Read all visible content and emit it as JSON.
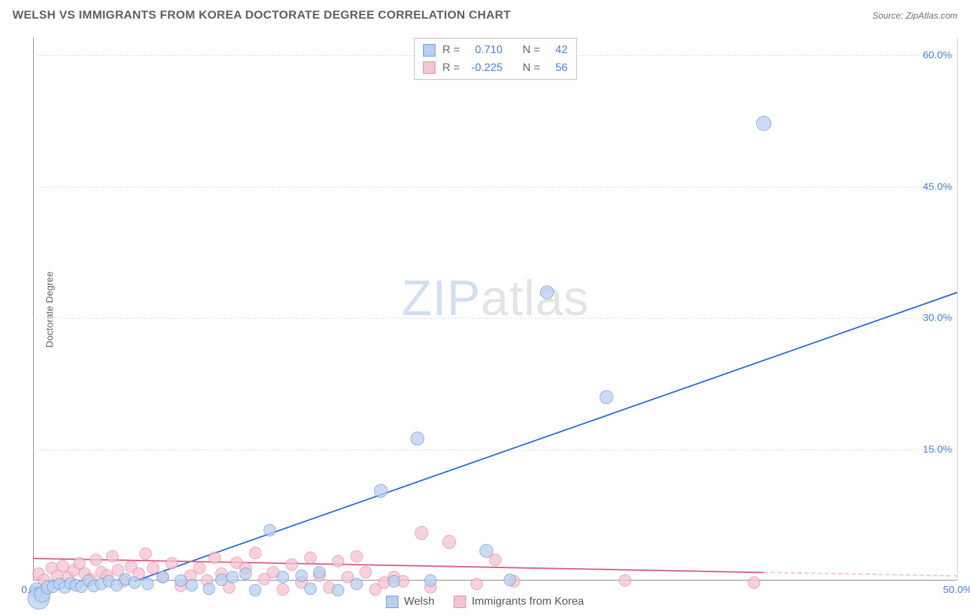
{
  "header": {
    "title": "WELSH VS IMMIGRANTS FROM KOREA DOCTORATE DEGREE CORRELATION CHART",
    "source": "Source: ZipAtlas.com"
  },
  "chart": {
    "type": "scatter",
    "ylabel": "Doctorate Degree",
    "watermark_a": "ZIP",
    "watermark_b": "atlas",
    "background_color": "#ffffff",
    "grid_color": "#dddddd",
    "axis_color": "#888888",
    "tick_color": "#4b7fd6",
    "xlim": [
      0.0,
      50.0
    ],
    "ylim": [
      0.0,
      62.0
    ],
    "xtick_vals": [
      0.0,
      50.0
    ],
    "xtick_labels": [
      "0.0%",
      "50.0%"
    ],
    "ytick_vals": [
      15.0,
      30.0,
      45.0,
      60.0
    ],
    "ytick_labels": [
      "15.0%",
      "30.0%",
      "45.0%",
      "60.0%"
    ],
    "series": [
      {
        "name": "Welsh",
        "fill": "#b9cfef",
        "stroke": "#6a98dd",
        "line_color": "#2f6fd0",
        "r_value": "0.710",
        "n_value": "42",
        "trend": {
          "x1": 5.5,
          "y1": 0.0,
          "x2": 50.0,
          "y2": 33.0,
          "dash_from_x": 50.0
        },
        "points": [
          [
            0.2,
            0.6,
            11
          ],
          [
            0.3,
            0.5,
            16
          ],
          [
            0.5,
            0.3,
            12
          ],
          [
            0.8,
            0.8,
            10
          ],
          [
            1.1,
            0.7,
            9
          ],
          [
            1.4,
            1.0,
            9
          ],
          [
            1.7,
            0.6,
            9
          ],
          [
            2.0,
            1.1,
            9
          ],
          [
            2.3,
            0.9,
            9
          ],
          [
            2.6,
            0.7,
            9
          ],
          [
            3.0,
            1.4,
            9
          ],
          [
            3.3,
            0.8,
            9
          ],
          [
            3.7,
            1.0,
            9
          ],
          [
            4.1,
            1.3,
            9
          ],
          [
            4.5,
            0.9,
            9
          ],
          [
            5.0,
            1.6,
            9
          ],
          [
            5.5,
            1.2,
            9
          ],
          [
            6.2,
            1.0,
            9
          ],
          [
            7.0,
            1.8,
            9
          ],
          [
            8.0,
            1.4,
            9
          ],
          [
            8.6,
            0.9,
            9
          ],
          [
            9.5,
            0.5,
            9
          ],
          [
            10.2,
            1.5,
            9
          ],
          [
            10.8,
            1.8,
            9
          ],
          [
            11.5,
            2.2,
            9
          ],
          [
            12.0,
            0.3,
            9
          ],
          [
            12.8,
            7.2,
            9
          ],
          [
            13.5,
            1.8,
            9
          ],
          [
            14.5,
            2.0,
            9
          ],
          [
            15.0,
            0.5,
            9
          ],
          [
            15.5,
            2.4,
            9
          ],
          [
            16.5,
            0.3,
            9
          ],
          [
            17.5,
            1.0,
            9
          ],
          [
            18.8,
            11.8,
            10
          ],
          [
            19.5,
            1.3,
            9
          ],
          [
            20.8,
            17.8,
            10
          ],
          [
            21.5,
            1.4,
            9
          ],
          [
            24.5,
            5.0,
            10
          ],
          [
            25.8,
            1.5,
            9
          ],
          [
            27.8,
            34.5,
            10
          ],
          [
            31.0,
            22.5,
            10
          ],
          [
            39.5,
            54.0,
            11
          ]
        ]
      },
      {
        "name": "Immigrants from Korea",
        "fill": "#f5c4d1",
        "stroke": "#e48aa4",
        "line_color": "#db5f86",
        "r_value": "-0.225",
        "n_value": "56",
        "trend": {
          "x1": 0.0,
          "y1": 2.6,
          "x2": 39.5,
          "y2": 1.0,
          "dash_from_x": 39.5
        },
        "points": [
          [
            0.3,
            2.2,
            9
          ],
          [
            0.6,
            1.5,
            9
          ],
          [
            1.0,
            2.8,
            9
          ],
          [
            1.3,
            2.0,
            9
          ],
          [
            1.6,
            3.1,
            9
          ],
          [
            1.9,
            1.8,
            9
          ],
          [
            2.2,
            2.6,
            9
          ],
          [
            2.5,
            3.4,
            9
          ],
          [
            2.8,
            2.2,
            9
          ],
          [
            3.1,
            1.6,
            9
          ],
          [
            3.4,
            3.8,
            9
          ],
          [
            3.7,
            2.4,
            9
          ],
          [
            4.0,
            2.0,
            9
          ],
          [
            4.3,
            4.2,
            9
          ],
          [
            4.6,
            2.6,
            9
          ],
          [
            4.9,
            1.3,
            9
          ],
          [
            5.3,
            3.0,
            9
          ],
          [
            5.7,
            2.2,
            9
          ],
          [
            6.1,
            4.5,
            9
          ],
          [
            6.5,
            2.8,
            9
          ],
          [
            7.0,
            1.8,
            9
          ],
          [
            7.5,
            3.4,
            9
          ],
          [
            8.0,
            0.8,
            9
          ],
          [
            8.5,
            2.0,
            9
          ],
          [
            9.0,
            2.8,
            9
          ],
          [
            9.4,
            1.4,
            9
          ],
          [
            9.8,
            4.0,
            9
          ],
          [
            10.2,
            2.2,
            9
          ],
          [
            10.6,
            0.6,
            9
          ],
          [
            11.0,
            3.5,
            9
          ],
          [
            11.5,
            2.8,
            9
          ],
          [
            12.0,
            4.6,
            9
          ],
          [
            12.5,
            1.6,
            9
          ],
          [
            13.0,
            2.4,
            9
          ],
          [
            13.5,
            0.4,
            9
          ],
          [
            14.0,
            3.2,
            9
          ],
          [
            14.5,
            1.2,
            9
          ],
          [
            15.0,
            4.0,
            9
          ],
          [
            15.5,
            2.0,
            9
          ],
          [
            16.0,
            0.6,
            9
          ],
          [
            16.5,
            3.6,
            9
          ],
          [
            17.0,
            1.8,
            9
          ],
          [
            17.5,
            4.2,
            9
          ],
          [
            18.0,
            2.4,
            9
          ],
          [
            18.5,
            0.4,
            9
          ],
          [
            19.0,
            1.2,
            9
          ],
          [
            19.5,
            1.8,
            9
          ],
          [
            20.0,
            1.3,
            9
          ],
          [
            21.0,
            7.0,
            10
          ],
          [
            21.5,
            0.6,
            9
          ],
          [
            22.5,
            6.0,
            10
          ],
          [
            24.0,
            1.0,
            9
          ],
          [
            25.0,
            3.8,
            9
          ],
          [
            26.0,
            1.3,
            9
          ],
          [
            32.0,
            1.4,
            9
          ],
          [
            39.0,
            1.2,
            9
          ]
        ]
      }
    ],
    "stats_legend_labels": {
      "r": "R =",
      "n": "N ="
    },
    "marker_opacity": 0.75
  }
}
